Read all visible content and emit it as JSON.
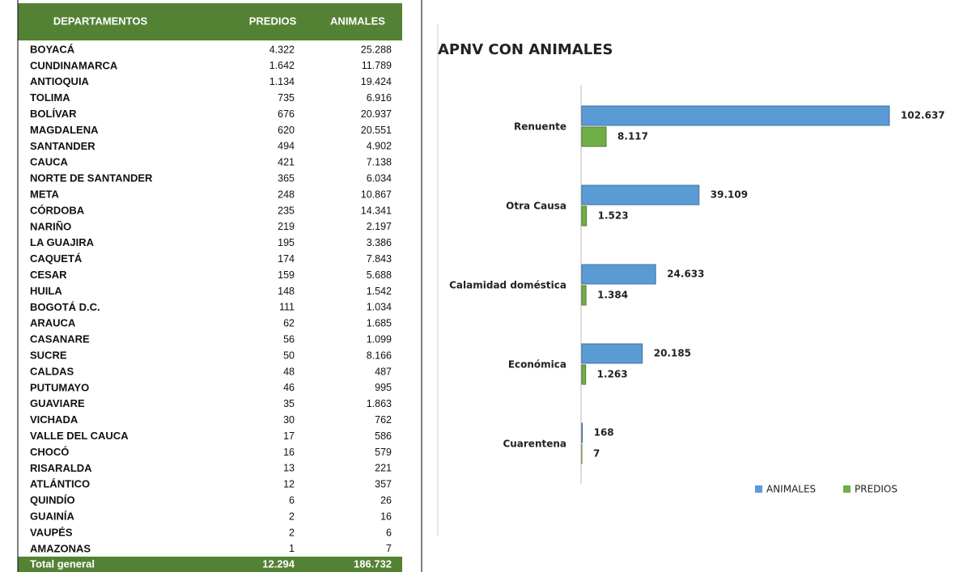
{
  "table": {
    "header": [
      "DEPARTAMENTOS",
      "PREDIOS",
      "ANIMALES"
    ],
    "rows": [
      [
        "BOYACÁ",
        "4.322",
        "25.288"
      ],
      [
        "CUNDINAMARCA",
        "1.642",
        "11.789"
      ],
      [
        "ANTIOQUIA",
        "1.134",
        "19.424"
      ],
      [
        "TOLIMA",
        "735",
        "6.916"
      ],
      [
        "BOLÍVAR",
        "676",
        "20.937"
      ],
      [
        "MAGDALENA",
        "620",
        "20.551"
      ],
      [
        "SANTANDER",
        "494",
        "4.902"
      ],
      [
        "CAUCA",
        "421",
        "7.138"
      ],
      [
        "NORTE DE SANTANDER",
        "365",
        "6.034"
      ],
      [
        "META",
        "248",
        "10.867"
      ],
      [
        "CÓRDOBA",
        "235",
        "14.341"
      ],
      [
        "NARIÑO",
        "219",
        "2.197"
      ],
      [
        "LA GUAJIRA",
        "195",
        "3.386"
      ],
      [
        "CAQUETÁ",
        "174",
        "7.843"
      ],
      [
        "CESAR",
        "159",
        "5.688"
      ],
      [
        "HUILA",
        "148",
        "1.542"
      ],
      [
        "BOGOTÁ D.C.",
        "111",
        "1.034"
      ],
      [
        "ARAUCA",
        "62",
        "1.685"
      ],
      [
        "CASANARE",
        "56",
        "1.099"
      ],
      [
        "SUCRE",
        "50",
        "8.166"
      ],
      [
        "CALDAS",
        "48",
        "487"
      ],
      [
        "PUTUMAYO",
        "46",
        "995"
      ],
      [
        "GUAVIARE",
        "35",
        "1.863"
      ],
      [
        "VICHADA",
        "30",
        "762"
      ],
      [
        "VALLE DEL CAUCA",
        "17",
        "586"
      ],
      [
        "CHOCÓ",
        "16",
        "579"
      ],
      [
        "RISARALDA",
        "13",
        "221"
      ],
      [
        "ATLÁNTICO",
        "12",
        "357"
      ],
      [
        "QUINDÍO",
        "6",
        "26"
      ],
      [
        "GUAINÍA",
        "2",
        "16"
      ],
      [
        "VAUPÉS",
        "2",
        "6"
      ],
      [
        "AMAZONAS",
        "1",
        "7"
      ]
    ],
    "total": [
      "Total general",
      "12.294",
      "186.732"
    ]
  },
  "chart_data": {
    "type": "hbar",
    "title": "APNV CON ANIMALES",
    "categories": [
      "Renuente",
      "Otra Causa",
      "Calamidad doméstica",
      "Económica",
      "Cuarentena"
    ],
    "series": [
      {
        "name": "ANIMALES",
        "color": "#5b9bd5",
        "values": [
          102637,
          39109,
          24633,
          20185,
          168
        ],
        "value_labels": [
          "102.637",
          "39.109",
          "24.633",
          "20.185",
          "168"
        ]
      },
      {
        "name": "PREDIOS",
        "color": "#70ad47",
        "values": [
          8117,
          1523,
          1384,
          1263,
          7
        ],
        "value_labels": [
          "8.117",
          "1.523",
          "1.384",
          "1.263",
          "7"
        ]
      }
    ],
    "legend": "bottom-right"
  }
}
